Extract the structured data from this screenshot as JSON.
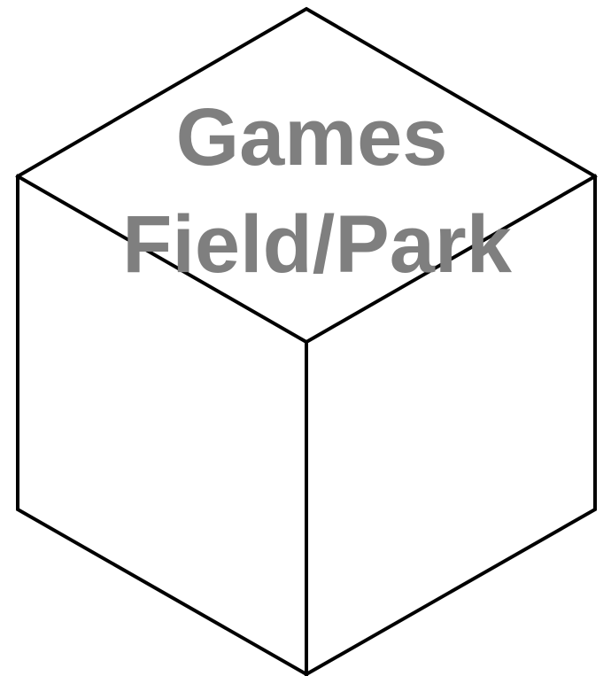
{
  "diagram": {
    "shape": "isometric-cube",
    "label_lines": [
      "Games",
      "Field/Park"
    ],
    "colors": {
      "outline": "#000000",
      "label": "#7f7f7f",
      "background": "#ffffff"
    }
  }
}
